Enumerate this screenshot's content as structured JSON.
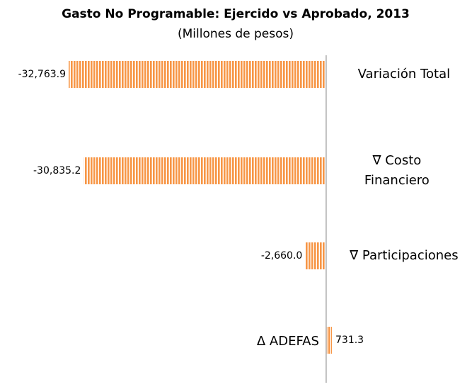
{
  "chart_data": {
    "type": "bar",
    "orientation": "horizontal",
    "title": "Gasto No Programable: Ejercido vs Aprobado, 2013",
    "subtitle": "(Millones de pesos)",
    "categories": [
      "Variación Total",
      "∇ Costo Financiero",
      "∇ Participaciones",
      "Δ ADEFAS"
    ],
    "values": [
      -32763.9,
      -30835.2,
      -2660.0,
      731.3
    ],
    "value_labels": [
      "-32,763.9",
      "-30,835.2",
      "-2,660.0",
      "731.3"
    ],
    "color": "#f79646"
  }
}
